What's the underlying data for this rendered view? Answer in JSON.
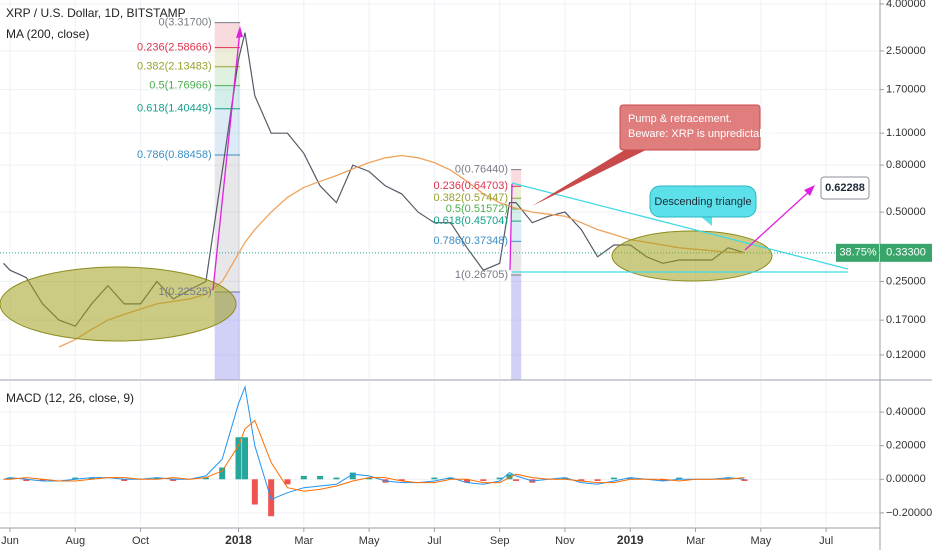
{
  "chart_data": [
    {
      "type": "line",
      "title": "XRP / U.S. Dollar, 1D, BITSTAMP",
      "log_scale": true,
      "grid": true,
      "xlim": [
        -0.306,
        26.65
      ],
      "ylim": [
        0.0935,
        4.16
      ],
      "xticks": [
        {
          "value": 0,
          "label": "Jun"
        },
        {
          "value": 2,
          "label": "Aug"
        },
        {
          "value": 4,
          "label": "Oct"
        },
        {
          "value": 7,
          "label": "2018"
        },
        {
          "value": 9,
          "label": "Mar"
        },
        {
          "value": 11,
          "label": "May"
        },
        {
          "value": 13,
          "label": "Jul"
        },
        {
          "value": 15,
          "label": "Sep"
        },
        {
          "value": 17,
          "label": "Nov"
        },
        {
          "value": 19,
          "label": "2019"
        },
        {
          "value": 21,
          "label": "Mar"
        },
        {
          "value": 23,
          "label": "May"
        },
        {
          "value": 25,
          "label": "Jul"
        }
      ],
      "yticks": [
        {
          "value": 4,
          "label": "4.00000"
        },
        {
          "value": 2.5,
          "label": "2.50000"
        },
        {
          "value": 1.7,
          "label": "1.70000"
        },
        {
          "value": 1.1,
          "label": "1.10000"
        },
        {
          "value": 0.8,
          "label": "0.80000"
        },
        {
          "value": 0.5,
          "label": "0.50000"
        },
        {
          "value": 0.25,
          "label": "0.25000"
        },
        {
          "value": 0.17,
          "label": "0.17000"
        },
        {
          "value": 0.12,
          "label": "0.12000"
        }
      ],
      "x": [
        -0.2,
        0,
        0.5,
        1,
        1.5,
        2,
        2.5,
        3,
        3.5,
        4,
        4.5,
        5,
        5.5,
        6,
        6.5,
        7,
        7.2,
        7.5,
        8,
        8.5,
        9,
        9.5,
        10,
        10.5,
        11,
        11.5,
        12,
        12.5,
        13,
        13.5,
        14,
        14.5,
        15,
        15.3,
        15.5,
        16,
        16.5,
        17,
        17.5,
        18,
        18.5,
        19,
        19.5,
        20,
        20.5,
        21,
        21.5,
        22,
        22.5
      ],
      "series": [
        {
          "color": "#555a66",
          "values": [
            0.3,
            0.28,
            0.26,
            0.2,
            0.17,
            0.16,
            0.2,
            0.24,
            0.2,
            0.2,
            0.25,
            0.21,
            0.23,
            0.25,
            0.75,
            2.3,
            3.0,
            1.6,
            1.1,
            1.1,
            0.9,
            0.65,
            0.55,
            0.8,
            0.75,
            0.65,
            0.6,
            0.5,
            0.45,
            0.45,
            0.35,
            0.28,
            0.3,
            0.55,
            0.55,
            0.45,
            0.48,
            0.5,
            0.42,
            0.32,
            0.36,
            0.36,
            0.32,
            0.3,
            0.31,
            0.31,
            0.31,
            0.35,
            0.333
          ]
        },
        {
          "name": "MA (200, close)",
          "color": "#f0a35e",
          "values": [
            null,
            null,
            null,
            null,
            0.13,
            0.14,
            0.155,
            0.17,
            0.18,
            0.19,
            0.2,
            0.205,
            0.21,
            0.22,
            0.25,
            0.33,
            0.37,
            0.42,
            0.5,
            0.58,
            0.64,
            0.68,
            0.72,
            0.77,
            0.82,
            0.86,
            0.88,
            0.86,
            0.82,
            0.76,
            0.68,
            0.6,
            0.55,
            0.53,
            0.52,
            0.5,
            0.49,
            0.48,
            0.45,
            0.42,
            0.4,
            0.38,
            0.37,
            0.36,
            0.35,
            0.345,
            0.34,
            0.335,
            0.333
          ]
        }
      ],
      "fib_groups": [
        [
          {
            "label": "0(3.31700)",
            "price": 3.317,
            "color": "#787b86"
          },
          {
            "label": "0.236(2.58666)",
            "price": 2.58666,
            "color": "#e0324c"
          },
          {
            "label": "0.382(2.13483)",
            "price": 2.13483,
            "color": "#9aa12c"
          },
          {
            "label": "0.5(1.76966)",
            "price": 1.76966,
            "color": "#4caf50"
          },
          {
            "label": "0.618(1.40449)",
            "price": 1.40449,
            "color": "#12a08a"
          },
          {
            "label": "0.786(0.88458)",
            "price": 0.88458,
            "color": "#3d8fc6"
          },
          {
            "label": "1(0.22525)",
            "price": 0.22525,
            "color": "#787b86"
          }
        ],
        [
          {
            "label": "0(0.76440)",
            "price": 0.7644,
            "color": "#787b86"
          },
          {
            "label": "0.236(0.64703)",
            "price": 0.64703,
            "color": "#e0324c"
          },
          {
            "label": "0.382(0.57447)",
            "price": 0.57447,
            "color": "#9aa12c"
          },
          {
            "label": "0.5(0.51572)",
            "price": 0.51572,
            "color": "#4caf50"
          },
          {
            "label": "0.618(0.45704)",
            "price": 0.45704,
            "color": "#12a08a"
          },
          {
            "label": "0.786(0.37348)",
            "price": 0.37348,
            "color": "#3d8fc6"
          },
          {
            "label": "1(0.26705)",
            "price": 0.26705,
            "color": "#787b86"
          }
        ]
      ],
      "pump_note": [
        "Pump & retracement.",
        "Beware: XRP is unpredictable"
      ],
      "pattern_note": "Descending triangle",
      "target_label": "0.62288",
      "change_label": "38.75%",
      "last_price_label": "0.33300"
    },
    {
      "type": "macd",
      "title": "MACD (12, 26, close, 9)",
      "grid": true,
      "ylim": [
        -0.278,
        0.579
      ],
      "yticks": [
        {
          "value": 0.4,
          "label": "0.40000"
        },
        {
          "value": 0.2,
          "label": "0.20000"
        },
        {
          "value": 0,
          "label": "0.00000"
        },
        {
          "value": -0.2,
          "label": "−0.20000"
        }
      ],
      "x": [
        -0.2,
        0,
        0.5,
        1,
        1.5,
        2,
        2.5,
        3,
        3.5,
        4,
        4.5,
        5,
        5.5,
        6,
        6.5,
        7,
        7.2,
        7.5,
        8,
        8.5,
        9,
        9.5,
        10,
        10.5,
        11,
        11.5,
        12,
        12.5,
        13,
        13.5,
        14,
        14.5,
        15,
        15.3,
        15.5,
        16,
        16.5,
        17,
        17.5,
        18,
        18.5,
        19,
        19.5,
        20,
        20.5,
        21,
        21.5,
        22,
        22.5
      ],
      "histogram": [
        0,
        0.01,
        -0.01,
        -0.01,
        0,
        0.01,
        0.01,
        0,
        -0.01,
        0,
        0.01,
        -0.01,
        0,
        0.01,
        0.07,
        0.25,
        0.25,
        -0.15,
        -0.22,
        -0.03,
        0.02,
        0.02,
        0.01,
        0.04,
        0.01,
        -0.02,
        -0.01,
        0,
        0.01,
        0.01,
        -0.02,
        -0.01,
        0.01,
        0.03,
        -0.01,
        -0.02,
        0,
        0.01,
        -0.01,
        -0.01,
        0.01,
        0.01,
        0,
        -0.01,
        0.01,
        0,
        0,
        0.01,
        -0.01
      ],
      "histogram_colors": [
        "#26a69a",
        "#ef5350"
      ],
      "series": [
        {
          "color": "#2196f3",
          "values": [
            0,
            0.01,
            0,
            -0.01,
            -0.01,
            0,
            0.01,
            0.01,
            0,
            0,
            0.01,
            0,
            0,
            0.02,
            0.12,
            0.45,
            0.55,
            0.2,
            -0.12,
            -0.08,
            -0.05,
            -0.04,
            -0.03,
            0.03,
            0.02,
            -0.01,
            -0.02,
            -0.02,
            -0.01,
            0.01,
            -0.02,
            -0.03,
            -0.01,
            0.04,
            0.02,
            -0.01,
            0,
            0.01,
            -0.02,
            -0.03,
            -0.01,
            0.01,
            0,
            -0.01,
            0,
            0,
            0,
            0.01,
            0
          ]
        },
        {
          "color": "#ff6d00",
          "values": [
            0,
            0,
            0.01,
            0,
            -0.01,
            -0.01,
            0,
            0.01,
            0.01,
            0,
            0,
            0.01,
            0,
            0.01,
            0.05,
            0.2,
            0.3,
            0.35,
            0.1,
            -0.05,
            -0.07,
            -0.06,
            -0.04,
            -0.01,
            0.01,
            0.01,
            -0.01,
            -0.02,
            -0.02,
            0,
            0,
            -0.02,
            -0.02,
            0.01,
            0.03,
            0.01,
            0,
            0,
            -0.01,
            -0.02,
            -0.02,
            0,
            0,
            0,
            -0.01,
            0,
            0,
            0,
            0.01
          ]
        }
      ]
    }
  ]
}
